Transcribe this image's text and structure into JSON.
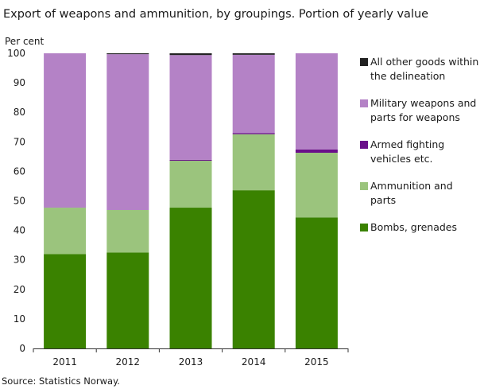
{
  "chart_data": {
    "type": "bar",
    "stacked": true,
    "title": "Export of weapons and ammunition, by groupings. Portion of yearly value",
    "ylabel": "Per cent",
    "xlabel": "",
    "ylim": [
      0,
      100
    ],
    "yticks": [
      0,
      10,
      20,
      30,
      40,
      50,
      60,
      70,
      80,
      90,
      100
    ],
    "grid": false,
    "legend_position": "right",
    "categories": [
      "2011",
      "2012",
      "2013",
      "2014",
      "2015"
    ],
    "series": [
      {
        "name": "Bombs, grenades",
        "color": "#3a8200",
        "values": [
          32,
          32.5,
          47.7,
          53.6,
          44.4
        ]
      },
      {
        "name": "Ammunition and parts",
        "color": "#9bc47d",
        "values": [
          15.7,
          14.4,
          15.9,
          19.0,
          21.9
        ]
      },
      {
        "name": "Armed fighting vehicles etc.",
        "color": "#6a0f8a",
        "values": [
          0,
          0,
          0.3,
          0.4,
          1.1
        ]
      },
      {
        "name": "Military weapons and parts for weapons",
        "color": "#b482c6",
        "values": [
          52.3,
          52.8,
          35.5,
          26.5,
          32.6
        ]
      },
      {
        "name": "All other goods within the delineation",
        "color": "#222222",
        "values": [
          0,
          0.3,
          0.6,
          0.5,
          0
        ]
      }
    ],
    "legend": [
      {
        "label_lines": [
          "All other goods within",
          "the delineation"
        ],
        "color": "#222222"
      },
      {
        "label_lines": [
          "Military weapons and",
          "parts for weapons"
        ],
        "color": "#b482c6"
      },
      {
        "label_lines": [
          "Armed fighting",
          "vehicles etc."
        ],
        "color": "#6a0f8a"
      },
      {
        "label_lines": [
          "Ammunition and",
          "parts"
        ],
        "color": "#9bc47d"
      },
      {
        "label_lines": [
          "Bombs, grenades"
        ],
        "color": "#3a8200"
      }
    ]
  },
  "source": "Source: Statistics Norway."
}
